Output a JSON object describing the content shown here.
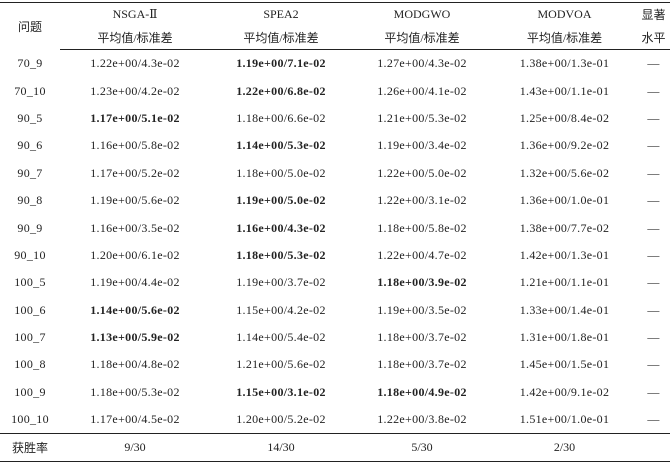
{
  "table": {
    "header": {
      "problem": "问题",
      "methods": [
        "NSGA-Ⅱ",
        "SPEA2",
        "MODGWO",
        "MODVOA"
      ],
      "sub": [
        "平均值/标准差",
        "平均值/标准差",
        "平均值/标准差",
        "平均值/标准差"
      ],
      "significance": [
        "显著",
        "水平"
      ]
    },
    "rows": [
      [
        "70_9",
        "1.22e+00/4.3e-02",
        "1.19e+00/7.1e-02",
        "1.27e+00/4.3e-02",
        "1.38e+00/1.3e-01",
        "—"
      ],
      [
        "70_10",
        "1.23e+00/4.2e-02",
        "1.22e+00/6.8e-02",
        "1.26e+00/4.1e-02",
        "1.43e+00/1.1e-01",
        "—"
      ],
      [
        "90_5",
        "1.17e+00/5.1e-02",
        "1.18e+00/6.6e-02",
        "1.21e+00/5.3e-02",
        "1.25e+00/8.4e-02",
        "—"
      ],
      [
        "90_6",
        "1.16e+00/5.8e-02",
        "1.14e+00/5.3e-02",
        "1.19e+00/3.4e-02",
        "1.36e+00/9.2e-02",
        "—"
      ],
      [
        "90_7",
        "1.17e+00/5.2e-02",
        "1.18e+00/5.0e-02",
        "1.22e+00/5.0e-02",
        "1.32e+00/5.6e-02",
        "—"
      ],
      [
        "90_8",
        "1.19e+00/5.6e-02",
        "1.19e+00/5.0e-02",
        "1.22e+00/3.1e-02",
        "1.36e+00/1.0e-01",
        "—"
      ],
      [
        "90_9",
        "1.16e+00/3.5e-02",
        "1.16e+00/4.3e-02",
        "1.18e+00/5.8e-02",
        "1.38e+00/7.7e-02",
        "—"
      ],
      [
        "90_10",
        "1.20e+00/6.1e-02",
        "1.18e+00/5.3e-02",
        "1.22e+00/4.7e-02",
        "1.42e+00/1.3e-01",
        "—"
      ],
      [
        "100_5",
        "1.19e+00/4.4e-02",
        "1.19e+00/3.7e-02",
        "1.18e+00/3.9e-02",
        "1.21e+00/1.1e-01",
        "—"
      ],
      [
        "100_6",
        "1.14e+00/5.6e-02",
        "1.15e+00/4.2e-02",
        "1.19e+00/3.5e-02",
        "1.33e+00/1.4e-01",
        "—"
      ],
      [
        "100_7",
        "1.13e+00/5.9e-02",
        "1.14e+00/5.4e-02",
        "1.18e+00/3.7e-02",
        "1.31e+00/1.8e-01",
        "—"
      ],
      [
        "100_8",
        "1.18e+00/4.8e-02",
        "1.21e+00/5.6e-02",
        "1.18e+00/3.7e-02",
        "1.45e+00/1.5e-01",
        "—"
      ],
      [
        "100_9",
        "1.18e+00/5.3e-02",
        "1.15e+00/3.1e-02",
        "1.18e+00/4.9e-02",
        "1.42e+00/9.1e-02",
        "—"
      ],
      [
        "100_10",
        "1.17e+00/4.5e-02",
        "1.20e+00/5.2e-02",
        "1.22e+00/3.8e-02",
        "1.51e+00/1.0e-01",
        "—"
      ]
    ],
    "footer": [
      "获胜率",
      "9/30",
      "14/30",
      "5/30",
      "2/30"
    ]
  }
}
